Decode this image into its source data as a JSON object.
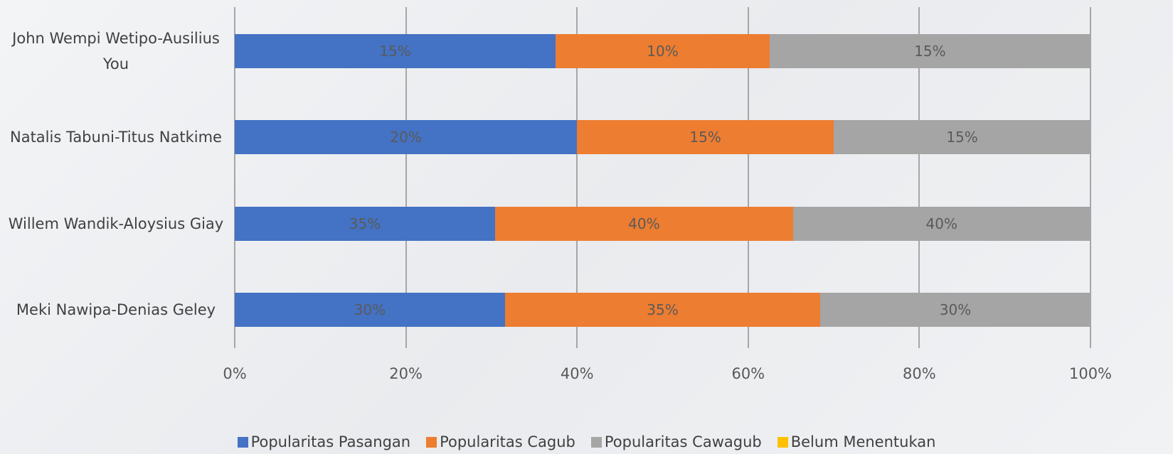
{
  "chart_data": {
    "type": "stacked_bar_100",
    "orientation": "horizontal",
    "categories": [
      "John Wempi Wetipo-Ausilius You",
      "Natalis Tabuni-Titus Natkime",
      "Willem Wandik-Aloysius Giay",
      "Meki Nawipa-Denias Geley"
    ],
    "series": [
      {
        "name": "Popularitas Pasangan",
        "color": "#4472c4",
        "values": [
          15,
          20,
          35,
          30
        ],
        "value_labels": [
          "15%",
          "20%",
          "35%",
          "30%"
        ]
      },
      {
        "name": "Popularitas Cagub",
        "color": "#ed7d31",
        "values": [
          10,
          15,
          40,
          35
        ],
        "value_labels": [
          "10%",
          "15%",
          "40%",
          "35%"
        ]
      },
      {
        "name": "Popularitas Cawagub",
        "color": "#a5a5a5",
        "values": [
          15,
          15,
          40,
          30
        ],
        "value_labels": [
          "15%",
          "15%",
          "40%",
          "30%"
        ]
      },
      {
        "name": "Belum Menentukan",
        "color": "#ffc000",
        "values": [
          null,
          null,
          null,
          null
        ]
      }
    ],
    "xlim": [
      0,
      100
    ],
    "xticks": [
      {
        "value": 0,
        "label": "0%"
      },
      {
        "value": 20,
        "label": "20%"
      },
      {
        "value": 40,
        "label": "40%"
      },
      {
        "value": 60,
        "label": "60%"
      },
      {
        "value": 80,
        "label": "80%"
      },
      {
        "value": 100,
        "label": "100%"
      }
    ],
    "grid": true,
    "legend": "bottom"
  }
}
